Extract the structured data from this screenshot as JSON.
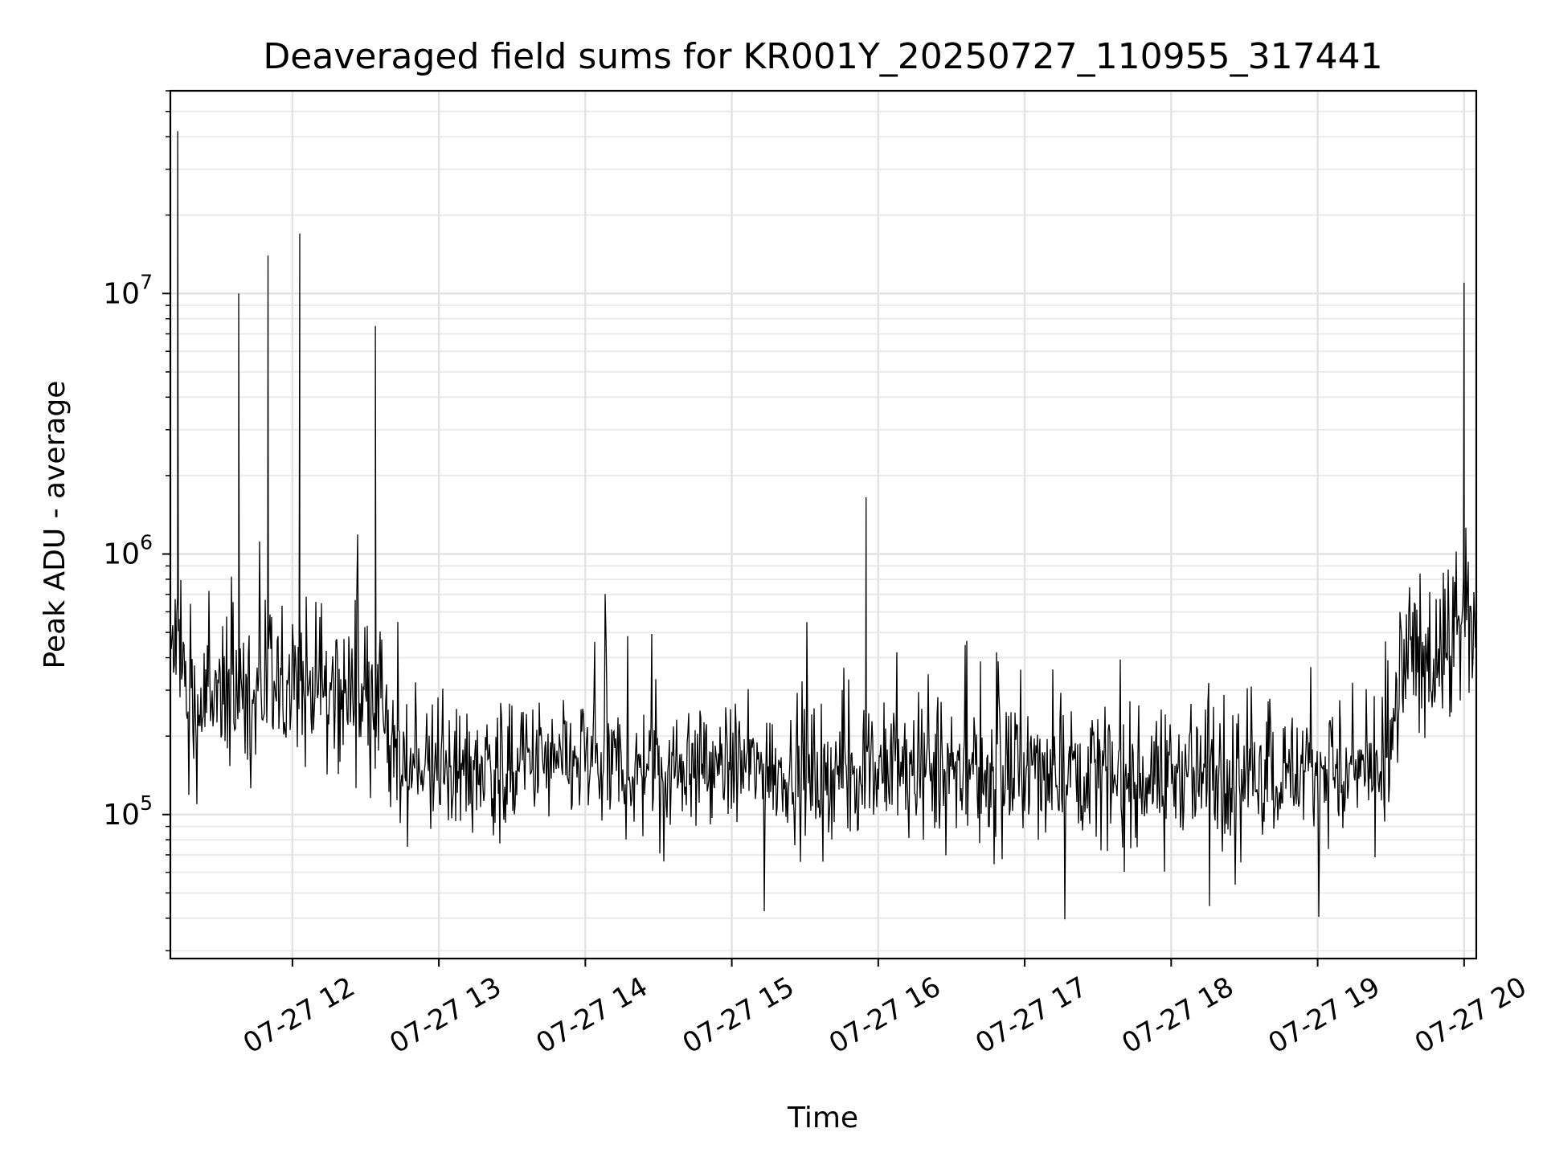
{
  "chart_data": {
    "type": "line",
    "title": "Deaveraged field sums for KR001Y_20250727_110955_317441",
    "xlabel": "Time",
    "ylabel": "Peak ADU - average",
    "yscale": "log",
    "ylim": [
      28000,
      60000000
    ],
    "xlim": [
      "2025-07-27 11:10",
      "2025-07-27 20:05"
    ],
    "grid": true,
    "x_ticks": [
      {
        "value": "2025-07-27 12:00",
        "label": "07-27 12"
      },
      {
        "value": "2025-07-27 13:00",
        "label": "07-27 13"
      },
      {
        "value": "2025-07-27 14:00",
        "label": "07-27 14"
      },
      {
        "value": "2025-07-27 15:00",
        "label": "07-27 15"
      },
      {
        "value": "2025-07-27 16:00",
        "label": "07-27 16"
      },
      {
        "value": "2025-07-27 17:00",
        "label": "07-27 17"
      },
      {
        "value": "2025-07-27 18:00",
        "label": "07-27 18"
      },
      {
        "value": "2025-07-27 19:00",
        "label": "07-27 19"
      },
      {
        "value": "2025-07-27 20:00",
        "label": "07-27 20"
      }
    ],
    "y_ticks": [
      {
        "value": 100000,
        "base": "10",
        "exp": "5"
      },
      {
        "value": 1000000,
        "base": "10",
        "exp": "6"
      },
      {
        "value": 10000000,
        "base": "10",
        "exp": "7"
      }
    ],
    "series_color": "#000000",
    "series": [
      {
        "x": [
          "2025-07-27 11:10",
          "2025-07-27 11:13",
          "2025-07-27 11:15",
          "2025-07-27 11:17",
          "2025-07-27 11:20",
          "2025-07-27 11:23",
          "2025-07-27 11:27",
          "2025-07-27 11:30",
          "2025-07-27 11:35",
          "2025-07-27 11:38",
          "2025-07-27 11:40",
          "2025-07-27 11:45",
          "2025-07-27 11:50",
          "2025-07-27 11:52",
          "2025-07-27 11:55",
          "2025-07-27 11:58",
          "2025-07-27 12:00",
          "2025-07-27 12:03",
          "2025-07-27 12:07",
          "2025-07-27 12:10",
          "2025-07-27 12:15",
          "2025-07-27 12:20",
          "2025-07-27 12:25",
          "2025-07-27 12:30",
          "2025-07-27 12:34",
          "2025-07-27 12:37",
          "2025-07-27 12:40",
          "2025-07-27 12:45",
          "2025-07-27 12:50",
          "2025-07-27 12:55",
          "2025-07-27 13:00",
          "2025-07-27 13:10",
          "2025-07-27 13:20",
          "2025-07-27 13:30",
          "2025-07-27 13:40",
          "2025-07-27 13:50",
          "2025-07-27 14:00",
          "2025-07-27 14:15",
          "2025-07-27 14:30",
          "2025-07-27 14:45",
          "2025-07-27 14:50",
          "2025-07-27 15:00",
          "2025-07-27 15:15",
          "2025-07-27 15:30",
          "2025-07-27 15:45",
          "2025-07-27 15:55",
          "2025-07-27 16:00",
          "2025-07-27 16:15",
          "2025-07-27 16:30",
          "2025-07-27 16:45",
          "2025-07-27 17:00",
          "2025-07-27 17:15",
          "2025-07-27 17:30",
          "2025-07-27 17:45",
          "2025-07-27 18:00",
          "2025-07-27 18:15",
          "2025-07-27 18:30",
          "2025-07-27 18:45",
          "2025-07-27 19:00",
          "2025-07-27 19:10",
          "2025-07-27 19:20",
          "2025-07-27 19:30",
          "2025-07-27 19:35",
          "2025-07-27 19:38",
          "2025-07-27 19:40",
          "2025-07-27 19:45",
          "2025-07-27 19:50",
          "2025-07-27 19:55",
          "2025-07-27 20:00",
          "2025-07-27 20:02",
          "2025-07-27 20:05"
        ],
        "y": [
          400000,
          42000000,
          500000,
          250000,
          230000,
          260000,
          280000,
          260000,
          300000,
          10000000,
          260000,
          300000,
          14000000,
          290000,
          300000,
          280000,
          300000,
          17000000,
          320000,
          330000,
          300000,
          290000,
          310000,
          280000,
          7500000,
          250000,
          170000,
          150000,
          160000,
          155000,
          150000,
          160000,
          150000,
          155000,
          160000,
          150000,
          165000,
          150000,
          150000,
          160000,
          150000,
          155000,
          150000,
          150000,
          145000,
          1650000,
          150000,
          145000,
          140000,
          150000,
          145000,
          150000,
          150000,
          140000,
          145000,
          140000,
          145000,
          145000,
          150000,
          140000,
          145000,
          150000,
          450000,
          400000,
          380000,
          420000,
          400000,
          450000,
          11000000,
          600000,
          500000
        ]
      }
    ]
  }
}
